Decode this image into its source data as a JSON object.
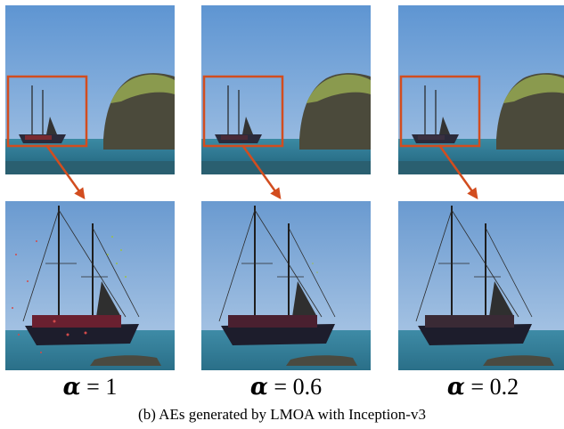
{
  "figure": {
    "columns": [
      {
        "alpha_symbol": "α",
        "alpha_value": "= 1"
      },
      {
        "alpha_symbol": "α",
        "alpha_value": "= 0.6"
      },
      {
        "alpha_symbol": "α",
        "alpha_value": "= 0.2"
      }
    ],
    "caption": "(b)  AEs generated by LMOA with Inception-v3",
    "colors": {
      "highlight_box": "#d24d1f",
      "arrow": "#d24d1f",
      "sky": "#6f9fd3",
      "sea": "#2f7a92",
      "rock": "#4b4a3b",
      "vegetation": "#8a9a4e"
    }
  }
}
